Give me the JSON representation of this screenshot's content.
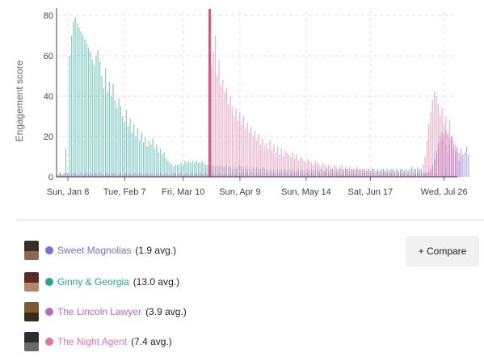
{
  "chart_data": {
    "type": "bar",
    "ylabel": "Engagement score",
    "ylim": [
      0,
      82
    ],
    "yticks": [
      0,
      20,
      40,
      60,
      80
    ],
    "x_tick_labels": [
      "Sun, Jan 8",
      "Tue, Feb 7",
      "Fri, Mar 10",
      "Sun, Apr 9",
      "Sun, May 14",
      "Sat, Jun 17",
      "Wed, Jul 26"
    ],
    "x_tick_days": [
      7,
      37,
      68,
      98,
      133,
      167,
      206
    ],
    "day_start": 1,
    "day_end": 213,
    "event_marker_day": 82,
    "grid": true,
    "series": [
      {
        "name": "Sweet Magnolias",
        "color": "#6f73dd",
        "start_day": 1,
        "values": [
          1,
          1,
          2,
          1,
          1,
          2,
          1,
          1,
          1,
          2,
          1,
          1,
          1,
          2,
          1,
          1,
          2,
          1,
          1,
          1,
          2,
          1,
          1,
          2,
          1,
          1,
          1,
          2,
          1,
          1,
          2,
          1,
          1,
          1,
          2,
          1,
          1,
          2,
          1,
          1,
          1,
          2,
          1,
          1,
          2,
          1,
          1,
          1,
          2,
          1,
          1,
          2,
          1,
          1,
          1,
          2,
          1,
          1,
          2,
          1,
          1,
          1,
          2,
          1,
          1,
          2,
          1,
          1,
          1,
          2,
          1,
          1,
          2,
          1,
          1,
          1,
          2,
          1,
          1,
          2,
          1,
          1,
          1,
          2,
          1,
          1,
          2,
          1,
          1,
          1,
          2,
          1,
          1,
          2,
          1,
          1,
          1,
          2,
          1,
          1,
          2,
          1,
          1,
          1,
          2,
          1,
          1,
          2,
          1,
          1,
          1,
          2,
          1,
          1,
          2,
          1,
          1,
          1,
          2,
          1,
          1,
          2,
          1,
          1,
          1,
          2,
          1,
          1,
          2,
          1,
          1,
          1,
          2,
          1,
          1,
          2,
          1,
          1,
          1,
          2,
          1,
          1,
          2,
          1,
          1,
          1,
          2,
          1,
          1,
          2,
          1,
          1,
          1,
          2,
          1,
          1,
          2,
          1,
          1,
          1,
          2,
          1,
          1,
          2,
          1,
          1,
          1,
          2,
          1,
          1,
          2,
          1,
          1,
          1,
          2,
          1,
          1,
          2,
          1,
          1,
          1,
          2,
          1,
          1,
          2,
          1,
          1,
          1,
          2,
          1,
          1,
          2,
          1,
          1,
          1,
          2,
          2,
          3,
          4,
          6,
          9,
          13,
          17,
          20,
          22,
          18,
          15,
          12,
          16,
          20,
          14,
          10,
          12,
          8,
          14,
          11,
          12,
          15,
          11
        ]
      },
      {
        "name": "Ginny & Georgia",
        "color": "#26a795",
        "start_day": 1,
        "values": [
          1,
          1,
          2,
          1,
          1,
          14,
          2,
          60,
          70,
          77,
          79,
          76,
          74,
          72,
          70,
          68,
          66,
          64,
          62,
          58,
          55,
          60,
          63,
          57,
          50,
          44,
          54,
          42,
          47,
          40,
          46,
          38,
          34,
          39,
          35,
          30,
          27,
          33,
          25,
          29,
          22,
          26,
          20,
          24,
          18,
          22,
          17,
          20,
          15,
          18,
          16,
          19,
          14,
          16,
          12,
          14,
          11,
          12,
          9,
          8,
          7,
          6,
          5,
          6,
          6,
          6,
          7,
          6,
          8,
          7,
          8,
          7,
          8,
          7,
          8,
          7,
          7,
          8,
          7,
          6,
          6,
          7,
          6,
          6,
          5,
          6,
          5,
          6,
          5,
          5,
          6,
          5,
          5,
          4,
          5,
          4,
          5,
          6,
          5,
          4,
          5,
          4,
          5,
          4,
          5,
          4,
          5,
          4,
          4,
          5,
          4,
          4,
          3,
          4,
          3,
          4,
          3,
          4,
          3,
          4,
          3,
          4,
          3,
          4,
          3,
          4,
          3,
          3,
          4,
          3,
          4,
          3,
          3,
          4,
          3,
          4,
          3,
          3,
          4,
          3,
          4,
          3,
          3,
          4,
          3,
          4,
          4,
          3,
          4,
          3,
          4,
          4,
          3,
          4,
          4,
          3,
          4,
          4,
          3,
          4,
          4,
          3,
          4,
          4,
          3,
          4,
          3,
          4,
          4,
          3,
          4,
          3,
          4,
          4,
          3,
          4,
          3,
          4,
          4,
          3,
          4,
          3,
          4,
          4,
          3,
          4,
          3,
          4,
          5,
          4,
          4,
          5,
          4,
          3,
          2,
          2,
          2,
          2,
          2,
          2,
          2,
          2,
          1,
          2,
          1,
          1,
          2,
          1,
          1,
          2,
          1,
          1,
          1
        ]
      },
      {
        "name": "The Lincoln Lawyer",
        "color": "#c068c4",
        "start_day": 1,
        "values": [
          1,
          1,
          2,
          1,
          2,
          1,
          1,
          2,
          1,
          1,
          2,
          1,
          1,
          2,
          1,
          2,
          1,
          1,
          2,
          1,
          1,
          2,
          1,
          2,
          1,
          1,
          2,
          1,
          1,
          2,
          1,
          2,
          1,
          1,
          2,
          1,
          1,
          2,
          1,
          2,
          1,
          1,
          2,
          1,
          1,
          2,
          1,
          2,
          1,
          1,
          2,
          1,
          1,
          2,
          1,
          2,
          1,
          1,
          2,
          1,
          1,
          2,
          1,
          2,
          1,
          1,
          2,
          1,
          1,
          2,
          1,
          2,
          1,
          1,
          2,
          1,
          1,
          2,
          1,
          2,
          1,
          1,
          2,
          1,
          1,
          2,
          1,
          2,
          1,
          1,
          2,
          1,
          1,
          2,
          1,
          2,
          1,
          1,
          2,
          1,
          1,
          2,
          1,
          2,
          1,
          1,
          2,
          1,
          1,
          2,
          1,
          2,
          1,
          1,
          2,
          1,
          1,
          2,
          1,
          2,
          1,
          1,
          2,
          1,
          1,
          2,
          1,
          2,
          1,
          1,
          2,
          1,
          1,
          2,
          1,
          2,
          1,
          1,
          2,
          1,
          1,
          2,
          1,
          2,
          1,
          1,
          2,
          1,
          1,
          2,
          1,
          2,
          1,
          1,
          2,
          1,
          1,
          2,
          1,
          2,
          1,
          1,
          2,
          1,
          1,
          2,
          1,
          2,
          1,
          1,
          2,
          1,
          1,
          2,
          1,
          2,
          1,
          1,
          2,
          1,
          1,
          2,
          1,
          2,
          1,
          1,
          2,
          1,
          1,
          2,
          1,
          2,
          1,
          1,
          2,
          1,
          1,
          2,
          3,
          5,
          8,
          12,
          15,
          17,
          19,
          21,
          23,
          21,
          19,
          20,
          16,
          13,
          15,
          12,
          10
        ]
      },
      {
        "name": "The Night Agent",
        "color": "#e5739f",
        "start_day": 82,
        "values": [
          80,
          55,
          62,
          70,
          50,
          58,
          45,
          48,
          42,
          44,
          36,
          40,
          35,
          30,
          34,
          28,
          32,
          26,
          30,
          24,
          27,
          22,
          25,
          20,
          23,
          18,
          21,
          16,
          19,
          15,
          17,
          14,
          18,
          13,
          16,
          12,
          15,
          11,
          14,
          10,
          13,
          12,
          11,
          10,
          12,
          9,
          11,
          8,
          10,
          9,
          8,
          7,
          9,
          8,
          7,
          6,
          8,
          7,
          6,
          5,
          7,
          6,
          5,
          6,
          5,
          4,
          6,
          5,
          4,
          5,
          6,
          4,
          5,
          4,
          5,
          4,
          3,
          4,
          5,
          3,
          4,
          3,
          4,
          3,
          4,
          3,
          4,
          3,
          2,
          3,
          2,
          3,
          4,
          3,
          2,
          3,
          2,
          3,
          2,
          3,
          2,
          3,
          2,
          3,
          2,
          3,
          2,
          3,
          2,
          3,
          2,
          3,
          4,
          6,
          10,
          18,
          26,
          32,
          38,
          42,
          40,
          36,
          30,
          34,
          26,
          30,
          22,
          28,
          20,
          18,
          16,
          14
        ]
      }
    ]
  },
  "legend": [
    {
      "name": "Sweet Magnolias",
      "avg": "(1.9 avg.)",
      "color": "#6f73dd",
      "thumb": [
        "#3a2d24",
        "#8a6a4c"
      ]
    },
    {
      "name": "Ginny & Georgia",
      "avg": "(13.0 avg.)",
      "color": "#26a795",
      "thumb": [
        "#5c2a22",
        "#b08870"
      ]
    },
    {
      "name": "The Lincoln Lawyer",
      "avg": "(3.9 avg.)",
      "color": "#c068c4",
      "thumb": [
        "#7a5a30",
        "#3a2a20"
      ]
    },
    {
      "name": "The Night Agent",
      "avg": "(7.4 avg.)",
      "color": "#e5739f",
      "thumb": [
        "#2c2c2c",
        "#6a6a6a"
      ]
    }
  ],
  "compare_button": "+ Compare",
  "colors": {
    "grid": "#e2e2e2",
    "axis": "#444444",
    "marker": "#e0557f"
  }
}
